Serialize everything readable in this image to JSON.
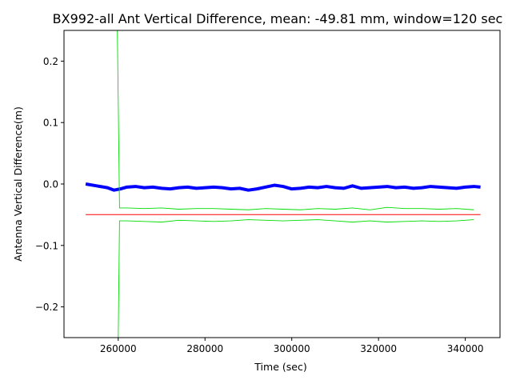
{
  "chart_data": {
    "type": "line",
    "title": "BX992-all Ant Vertical Difference, mean: -49.81 mm, window=120 sec",
    "xlabel": "Time (sec)",
    "ylabel": "Antenna Vertical Difference(m)",
    "xlim": [
      247500,
      348000
    ],
    "ylim": [
      -0.25,
      0.25
    ],
    "xticks": [
      260000,
      280000,
      300000,
      320000,
      340000
    ],
    "xtick_labels": [
      "260000",
      "280000",
      "300000",
      "320000",
      "340000"
    ],
    "yticks": [
      0.2,
      0.1,
      0.0,
      -0.1,
      -0.2
    ],
    "ytick_labels": [
      "0.2",
      "0.1",
      "0.0",
      "−0.1",
      "−0.2"
    ],
    "grid": false,
    "legend": "none",
    "series": [
      {
        "color": "#0000ff",
        "style": "thick-noisy-line",
        "x": [
          252500,
          255000,
          257500,
          259000,
          260500,
          262000,
          264000,
          266000,
          268000,
          270000,
          272000,
          274000,
          276000,
          278000,
          280000,
          282000,
          284000,
          286000,
          288000,
          290000,
          292000,
          294000,
          296000,
          298000,
          300000,
          302000,
          304000,
          306000,
          308000,
          310000,
          312000,
          314000,
          316000,
          318000,
          320000,
          322000,
          324000,
          326000,
          328000,
          330000,
          332000,
          334000,
          336000,
          338000,
          340000,
          342000,
          343500
        ],
        "y": [
          0.0,
          -0.003,
          -0.006,
          -0.01,
          -0.008,
          -0.005,
          -0.004,
          -0.006,
          -0.005,
          -0.007,
          -0.008,
          -0.006,
          -0.005,
          -0.007,
          -0.006,
          -0.005,
          -0.006,
          -0.008,
          -0.007,
          -0.01,
          -0.008,
          -0.005,
          -0.002,
          -0.004,
          -0.008,
          -0.007,
          -0.005,
          -0.006,
          -0.004,
          -0.006,
          -0.007,
          -0.003,
          -0.007,
          -0.006,
          -0.005,
          -0.004,
          -0.006,
          -0.005,
          -0.007,
          -0.006,
          -0.004,
          -0.005,
          -0.006,
          -0.007,
          -0.005,
          -0.004,
          -0.005
        ]
      },
      {
        "color": "#ff0000",
        "style": "mean-line",
        "x": [
          252500,
          343500
        ],
        "y": [
          -0.04981,
          -0.04981
        ]
      },
      {
        "color": "#00dd00",
        "style": "upper-bound",
        "x": [
          259800,
          260300,
          262000,
          266000,
          270000,
          274000,
          278000,
          282000,
          286000,
          290000,
          294000,
          298000,
          302000,
          306000,
          310000,
          314000,
          318000,
          322000,
          326000,
          330000,
          334000,
          338000,
          342000
        ],
        "y": [
          0.25,
          -0.039,
          -0.039,
          -0.04,
          -0.039,
          -0.041,
          -0.04,
          -0.04,
          -0.041,
          -0.042,
          -0.04,
          -0.041,
          -0.042,
          -0.04,
          -0.041,
          -0.039,
          -0.042,
          -0.038,
          -0.04,
          -0.04,
          -0.041,
          -0.04,
          -0.042
        ]
      },
      {
        "color": "#00dd00",
        "style": "lower-bound",
        "x": [
          260000,
          260300,
          262000,
          266000,
          270000,
          274000,
          278000,
          282000,
          286000,
          290000,
          294000,
          298000,
          302000,
          306000,
          310000,
          314000,
          318000,
          322000,
          326000,
          330000,
          334000,
          338000,
          342000
        ],
        "y": [
          -0.25,
          -0.06,
          -0.06,
          -0.061,
          -0.062,
          -0.059,
          -0.06,
          -0.061,
          -0.06,
          -0.058,
          -0.059,
          -0.06,
          -0.059,
          -0.058,
          -0.06,
          -0.062,
          -0.06,
          -0.062,
          -0.061,
          -0.06,
          -0.061,
          -0.06,
          -0.058
        ]
      }
    ]
  }
}
